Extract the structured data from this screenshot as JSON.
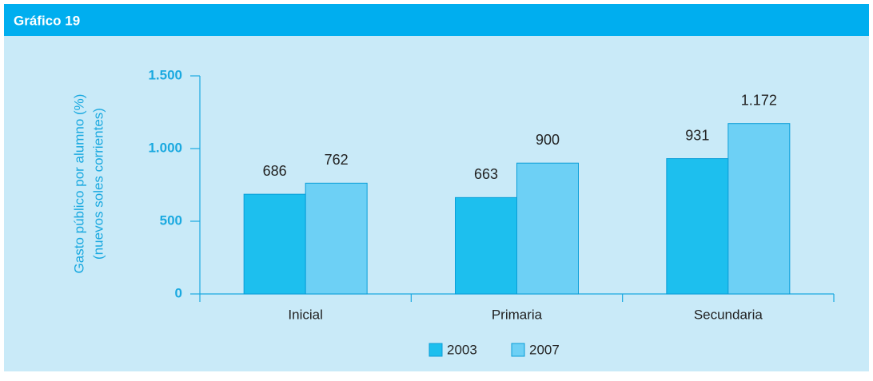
{
  "chart_data": {
    "type": "bar",
    "title": "Gráfico 19",
    "y_label": [
      "Gasto público por alumno  (%)",
      "(nuevos soles corrientes)"
    ],
    "categories": [
      "Inicial",
      "Primaria",
      "Secundaria"
    ],
    "series": [
      {
        "name": "2003",
        "color": "#1dbfee",
        "values": [
          686,
          663,
          931
        ]
      },
      {
        "name": "2007",
        "color": "#6dd0f5",
        "values": [
          762,
          900,
          1172
        ],
        "value_labels": [
          "762",
          "900",
          "1.172"
        ]
      }
    ],
    "ylim": [
      0,
      1500
    ],
    "yticks": [
      0,
      500,
      {
        "value": 1000,
        "label": "1.000"
      },
      {
        "value": 1500,
        "label": "1.500"
      }
    ],
    "legend": "bottom"
  }
}
